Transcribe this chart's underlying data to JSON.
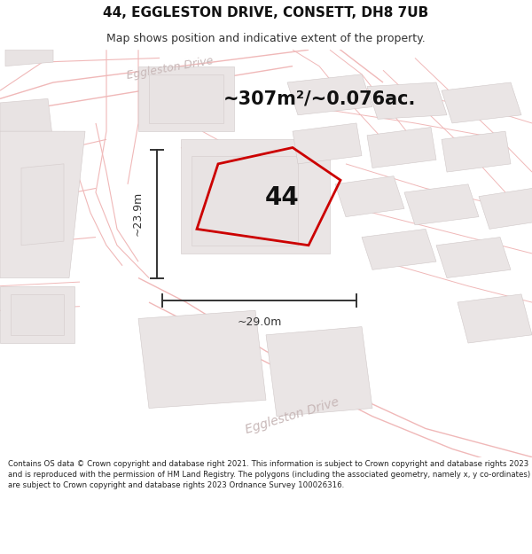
{
  "title_line1": "44, EGGLESTON DRIVE, CONSETT, DH8 7UB",
  "title_line2": "Map shows position and indicative extent of the property.",
  "footer_text": "Contains OS data © Crown copyright and database right 2021. This information is subject to Crown copyright and database rights 2023 and is reproduced with the permission of HM Land Registry. The polygons (including the associated geometry, namely x, y co-ordinates) are subject to Crown copyright and database rights 2023 Ordnance Survey 100026316.",
  "area_text": "~307m²/~0.076ac.",
  "label_number": "44",
  "dim_vertical": "~23.9m",
  "dim_horizontal": "~29.0m",
  "map_bg": "#f5f0f0",
  "road_color": "#f0b8b8",
  "building_fill": "#e8e3e3",
  "building_edge": "#d8d0d0",
  "plot_fill": "#eae5e5",
  "plot_edge": "#d0c8c8",
  "property_fill": "none",
  "property_edge": "#cc0000",
  "dim_color": "#333333",
  "street_label_color": "#c8b8b8",
  "title_fontsize": 11,
  "subtitle_fontsize": 9,
  "area_fontsize": 15,
  "label_fontsize": 20,
  "dim_fontsize": 9,
  "street_fontsize": 9
}
